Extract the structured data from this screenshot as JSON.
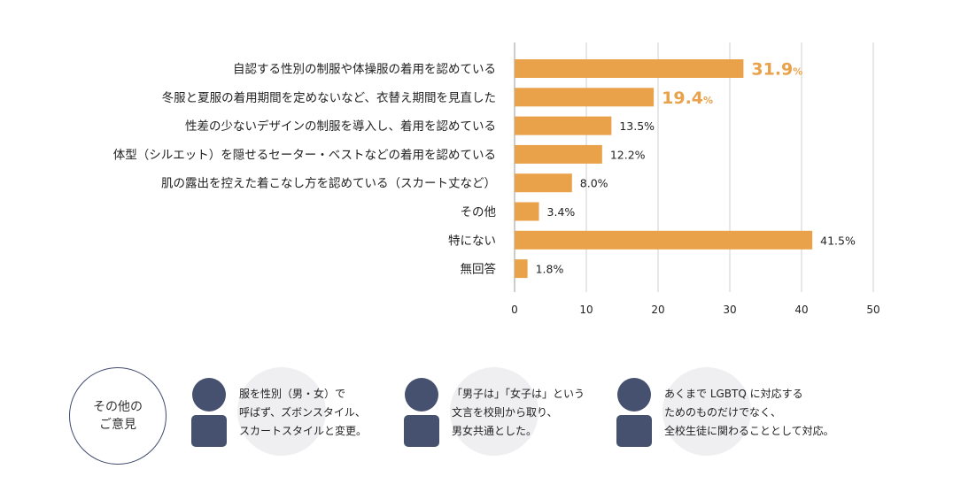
{
  "chart_data": {
    "type": "bar",
    "orientation": "horizontal",
    "categories": [
      "自認する性別の制服や体操服の着用を認めている",
      "冬服と夏服の着用期間を定めないなど、衣替え期間を見直した",
      "性差の少ないデザインの制服を導入し、着用を認めている",
      "体型（シルエット）を隠せるセーター・ベストなどの着用を認めている",
      "肌の露出を控えた着こなし方を認めている（スカート丈など）",
      "その他",
      "特にない",
      "無回答"
    ],
    "values": [
      31.9,
      19.4,
      13.5,
      12.2,
      8.0,
      3.4,
      41.5,
      1.8
    ],
    "value_labels": [
      "31.9",
      "19.4",
      "13.5%",
      "12.2%",
      "8.0%",
      "3.4%",
      "41.5%",
      "1.8%"
    ],
    "highlight_unit": "%",
    "highlight_count": 2,
    "xlim": [
      0,
      50
    ],
    "xticks": [
      "0",
      "10",
      "20",
      "30",
      "40",
      "50"
    ],
    "grid": true,
    "colors": {
      "bar": "#e9a14a",
      "highlight_text": "#e9a14a",
      "grid": "#cfcfcf",
      "text": "#222222"
    }
  },
  "opinions": {
    "badge": {
      "line1": "その他の",
      "line2": "ご意見"
    },
    "items": [
      {
        "lines": [
          "服を性別（男・女）で",
          "呼ばず、ズボンスタイル、",
          "スカートスタイルと変更。"
        ]
      },
      {
        "lines": [
          "「男子は」「女子は」という",
          "文言を校則から取り、",
          "男女共通とした。"
        ]
      },
      {
        "lines": [
          "あくまで LGBTQ に対応する",
          "ためのものだけでなく、",
          "全校生徒に関わることとして対応。"
        ]
      }
    ],
    "colors": {
      "person": "#46506f",
      "circle": "#efeff2",
      "badge_border": "#3f4a6b"
    }
  }
}
